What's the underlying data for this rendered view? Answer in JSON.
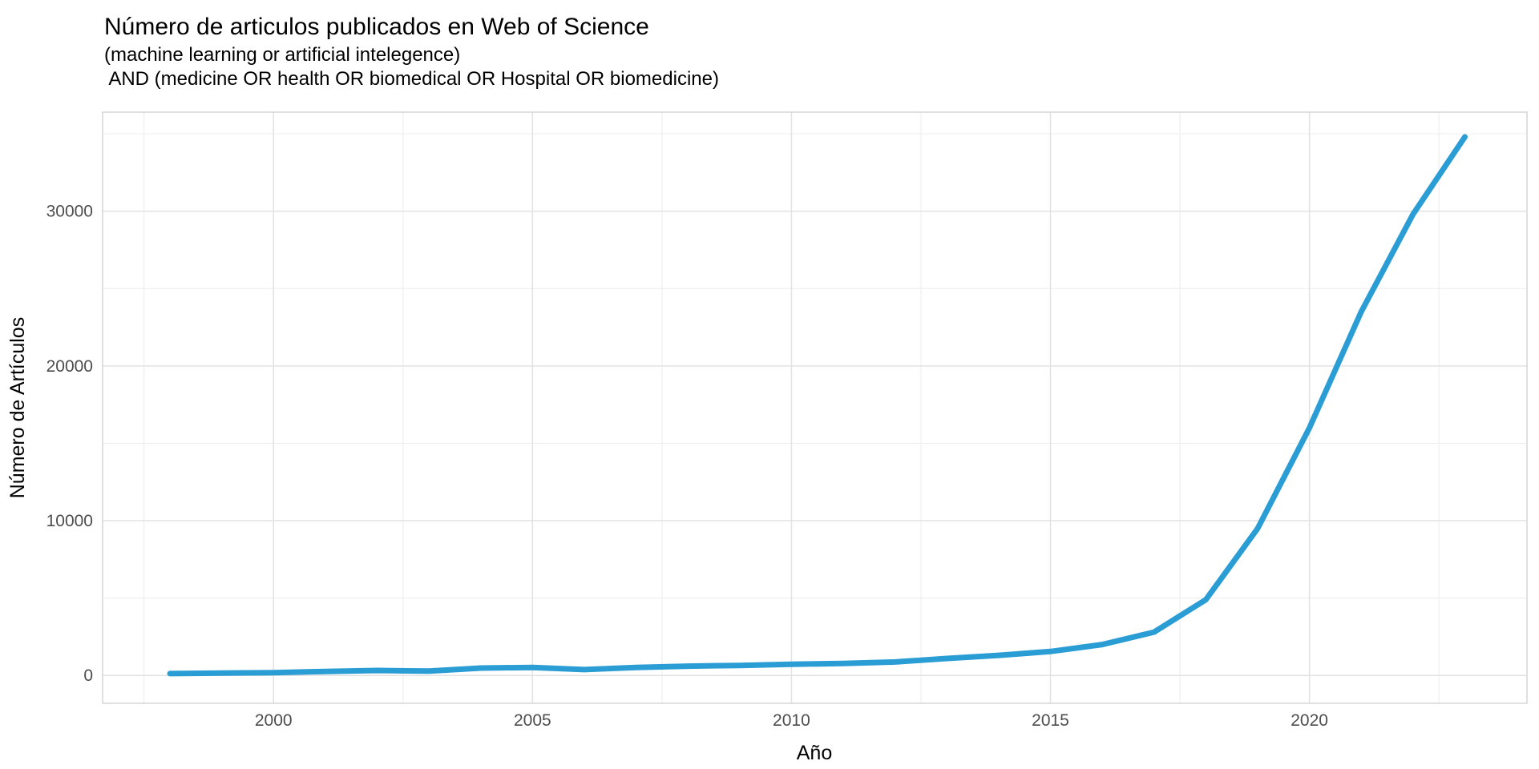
{
  "chart_data": {
    "type": "line",
    "title": "Número de articulos publicados en Web of Science",
    "subtitle_line1": "(machine learning or artificial intelegence)",
    "subtitle_line2": " AND (medicine OR health OR biomedical OR Hospital OR biomedicine)",
    "xlabel": "Año",
    "ylabel": "Número de Artículos",
    "x": [
      1998,
      1999,
      2000,
      2001,
      2002,
      2003,
      2004,
      2005,
      2006,
      2007,
      2008,
      2009,
      2010,
      2011,
      2012,
      2013,
      2014,
      2015,
      2016,
      2017,
      2018,
      2019,
      2020,
      2021,
      2022,
      2023
    ],
    "values": [
      120,
      150,
      180,
      260,
      320,
      280,
      480,
      520,
      380,
      520,
      600,
      650,
      720,
      780,
      870,
      1100,
      1300,
      1550,
      2000,
      2800,
      4900,
      9500,
      16000,
      23500,
      29800,
      34800
    ],
    "x_ticks": [
      2000,
      2005,
      2010,
      2015,
      2020
    ],
    "y_ticks": [
      0,
      10000,
      20000,
      30000
    ],
    "x_minor_ticks": [
      1997.5,
      2002.5,
      2007.5,
      2012.5,
      2017.5,
      2022.5
    ],
    "y_minor_ticks": [
      5000,
      15000,
      25000,
      35000
    ],
    "xlim": [
      1996.7,
      2024.2
    ],
    "ylim": [
      -1800,
      36400
    ],
    "line_color": "#2A9DD4",
    "grid_major_color": "#e2e2e2",
    "grid_minor_color": "#efefef",
    "panel_border_color": "#d6d6d6",
    "legend": false,
    "grid": true
  }
}
